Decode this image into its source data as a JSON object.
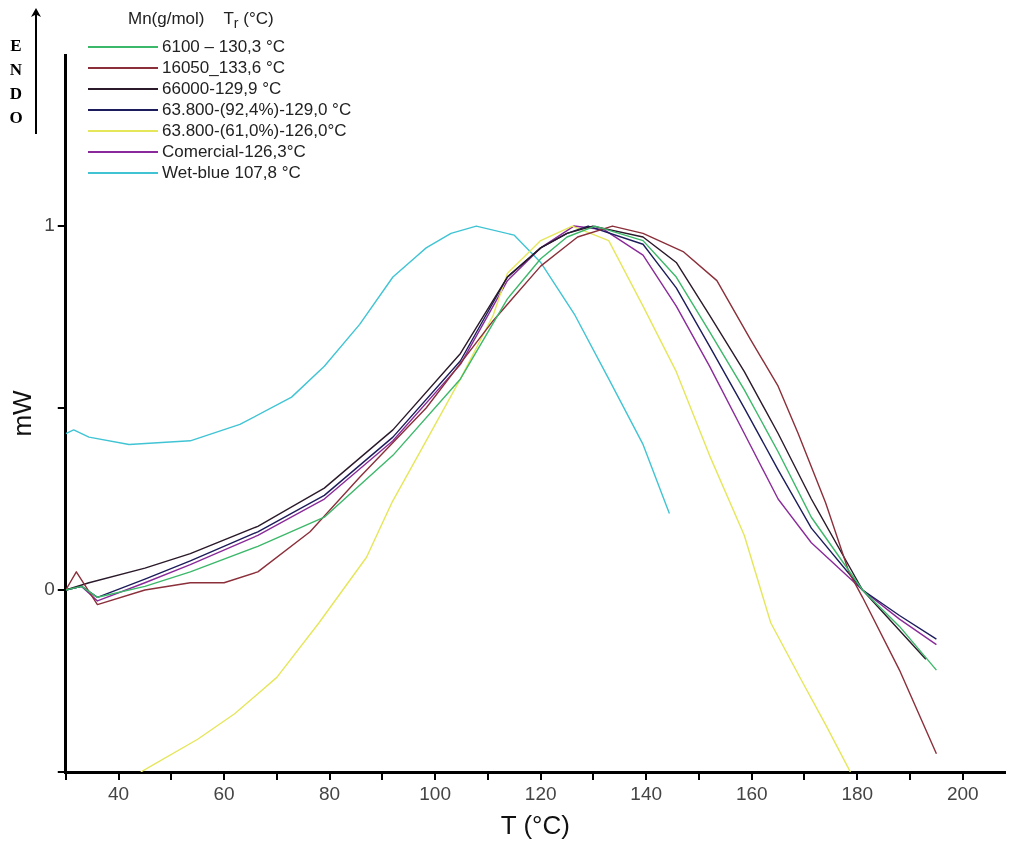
{
  "chart_data": {
    "type": "line",
    "xlabel": "T (°C)",
    "ylabel": "mW",
    "legend_title": "Mn(g/mol)    T$_{r}$ (°C)",
    "legend": "top left",
    "marker": "none",
    "line_style": "solid",
    "grid": false,
    "annotations": [
      "ENDO"
    ],
    "xlim": [
      30,
      208
    ],
    "xticks": [
      {
        "value": 30,
        "label": null
      },
      40,
      {
        "value": 50,
        "label": null
      },
      60,
      {
        "value": 70,
        "label": null
      },
      80,
      {
        "value": 90,
        "label": null
      },
      100,
      {
        "value": 110,
        "label": null
      },
      120,
      {
        "value": 130,
        "label": null
      },
      140,
      {
        "value": 150,
        "label": null
      },
      160,
      {
        "value": 170,
        "label": null
      },
      180,
      {
        "value": 190,
        "label": null
      },
      200
    ],
    "ylim": [
      -0.5,
      1.47
    ],
    "yticks": [
      {
        "value": -0.5,
        "label": null
      },
      0,
      {
        "value": 0.5,
        "label": null
      },
      1
    ],
    "series": [
      {
        "name": "6100 – 130,3 °C",
        "color": "#3cb86a",
        "x": [
          30,
          33,
          36,
          45,
          53.6,
          66.4,
          79,
          92,
          104.8,
          113.7,
          120,
          125,
          130.3,
          139.4,
          145.7,
          152,
          158.6,
          165,
          171.3,
          181,
          188,
          195
        ],
        "values": [
          0,
          0.01,
          -0.02,
          0.01,
          0.05,
          0.12,
          0.2,
          0.37,
          0.58,
          0.8,
          0.91,
          0.97,
          1,
          0.96,
          0.86,
          0.71,
          0.55,
          0.38,
          0.2,
          0,
          -0.1,
          -0.22
        ]
      },
      {
        "name": "16050_133,6 °C",
        "color": "#8b2f3a",
        "x": [
          30,
          32,
          36,
          45,
          53.6,
          60,
          66.4,
          76.3,
          85.7,
          98.3,
          111,
          120,
          127,
          133.6,
          139.4,
          147,
          153.4,
          159.7,
          165,
          168.8,
          174,
          178.4,
          181,
          188,
          195
        ],
        "values": [
          0,
          0.05,
          -0.04,
          0,
          0.02,
          0.02,
          0.05,
          0.16,
          0.31,
          0.5,
          0.74,
          0.89,
          0.97,
          1,
          0.98,
          0.93,
          0.85,
          0.69,
          0.56,
          0.43,
          0.24,
          0.05,
          -0.02,
          -0.22,
          -0.45
        ]
      },
      {
        "name": "66000-129,9 °C",
        "color": "#2a1a2a",
        "x": [
          30,
          34.4,
          45,
          53.6,
          66.4,
          79,
          92,
          104.8,
          113.7,
          120,
          125,
          129.9,
          139.4,
          145.7,
          152,
          158.6,
          165,
          171.3,
          181,
          193
        ],
        "values": [
          0,
          0.02,
          0.06,
          0.1,
          0.175,
          0.28,
          0.44,
          0.65,
          0.86,
          0.94,
          0.98,
          1,
          0.97,
          0.9,
          0.755,
          0.6,
          0.43,
          0.25,
          0,
          -0.19
        ]
      },
      {
        "name": "63.800-(92,4%)-129,0 °C",
        "color": "#1c1c5c",
        "x": [
          30,
          33,
          36,
          45,
          53.6,
          66.4,
          79,
          92,
          104.8,
          113.7,
          120,
          125,
          129,
          139.4,
          145.7,
          152,
          158.6,
          165,
          171.3,
          181,
          188,
          195
        ],
        "values": [
          0,
          0.01,
          -0.02,
          0.03,
          0.08,
          0.16,
          0.26,
          0.42,
          0.63,
          0.86,
          0.94,
          0.98,
          1,
          0.95,
          0.83,
          0.67,
          0.5,
          0.33,
          0.17,
          0,
          -0.07,
          -0.135
        ]
      },
      {
        "name": "63.800-(61,0%)-126,0°C",
        "color": "#e6e65a",
        "x": [
          44.2,
          55,
          62,
          70,
          78,
          87,
          91.8,
          98.3,
          104.8,
          111,
          113.7,
          120,
          126,
          132.9,
          139.4,
          145.7,
          152,
          158.6,
          163.6,
          169.5,
          174,
          178.7
        ],
        "values": [
          -0.5,
          -0.41,
          -0.34,
          -0.24,
          -0.09,
          0.09,
          0.24,
          0.41,
          0.58,
          0.755,
          0.87,
          0.96,
          1,
          0.96,
          0.78,
          0.6,
          0.37,
          0.15,
          -0.09,
          -0.25,
          -0.37,
          -0.5
        ]
      },
      {
        "name": "Comercial-126,3°C",
        "color": "#8a2a9a",
        "x": [
          30,
          33,
          36,
          45,
          53.6,
          66.4,
          79,
          92,
          104.8,
          113.7,
          120,
          126.3,
          132,
          139.4,
          145.7,
          152,
          158.6,
          165,
          171.3,
          181,
          188,
          195
        ],
        "values": [
          0,
          0.01,
          -0.03,
          0.02,
          0.07,
          0.15,
          0.25,
          0.41,
          0.62,
          0.85,
          0.94,
          1,
          0.99,
          0.92,
          0.78,
          0.615,
          0.43,
          0.25,
          0.13,
          0,
          -0.08,
          -0.15
        ]
      },
      {
        "name": "Wet-blue 107,8 °C",
        "color": "#40c4d4",
        "x": [
          30,
          31.5,
          34.4,
          42,
          53.6,
          63,
          72.8,
          79,
          85.7,
          92,
          98.3,
          103,
          107.8,
          115,
          120,
          126.5,
          132.9,
          139.4,
          144.4
        ],
        "values": [
          0.43,
          0.44,
          0.42,
          0.4,
          0.41,
          0.455,
          0.53,
          0.615,
          0.73,
          0.86,
          0.94,
          0.98,
          1,
          0.975,
          0.9,
          0.755,
          0.58,
          0.4,
          0.21
        ]
      }
    ]
  }
}
